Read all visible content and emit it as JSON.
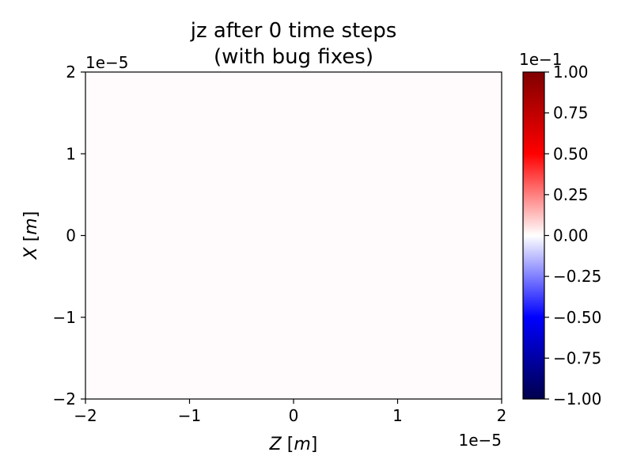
{
  "chart_data": {
    "type": "heatmap",
    "title_line1": "jz after 0 time steps",
    "title_line2": "(with bug fixes)",
    "xlabel_var": "Z",
    "xlabel_unit": "[m]",
    "ylabel_var": "X",
    "ylabel_unit": "[m]",
    "xlim": [
      -2,
      2
    ],
    "ylim": [
      -2,
      2
    ],
    "x_ticks": [
      -2,
      -1,
      0,
      1,
      2
    ],
    "y_ticks": [
      -2,
      -1,
      0,
      1,
      2
    ],
    "x_tick_labels": [
      "−2",
      "−1",
      "0",
      "1",
      "2"
    ],
    "y_tick_labels": [
      "−2",
      "−1",
      "0",
      "1",
      "2"
    ],
    "x_offset_text": "1e−5",
    "y_offset_text": "1e−5",
    "field_value": 0.0,
    "field_color": "#fffafc",
    "grid": false,
    "colorbar": {
      "cmap": "seismic",
      "vmin": -1.0,
      "vmax": 1.0,
      "ticks": [
        1.0,
        0.75,
        0.5,
        0.25,
        0.0,
        -0.25,
        -0.5,
        -0.75,
        -1.0
      ],
      "tick_labels": [
        "1.00",
        "0.75",
        "0.50",
        "0.25",
        "0.00",
        "−0.25",
        "−0.50",
        "−0.75",
        "−1.00"
      ],
      "offset_text": "1e−1",
      "colors": {
        "min": "#00004c",
        "blue": "#0000ff",
        "center": "#ffffff",
        "red": "#ff0000",
        "max": "#800000"
      }
    }
  }
}
